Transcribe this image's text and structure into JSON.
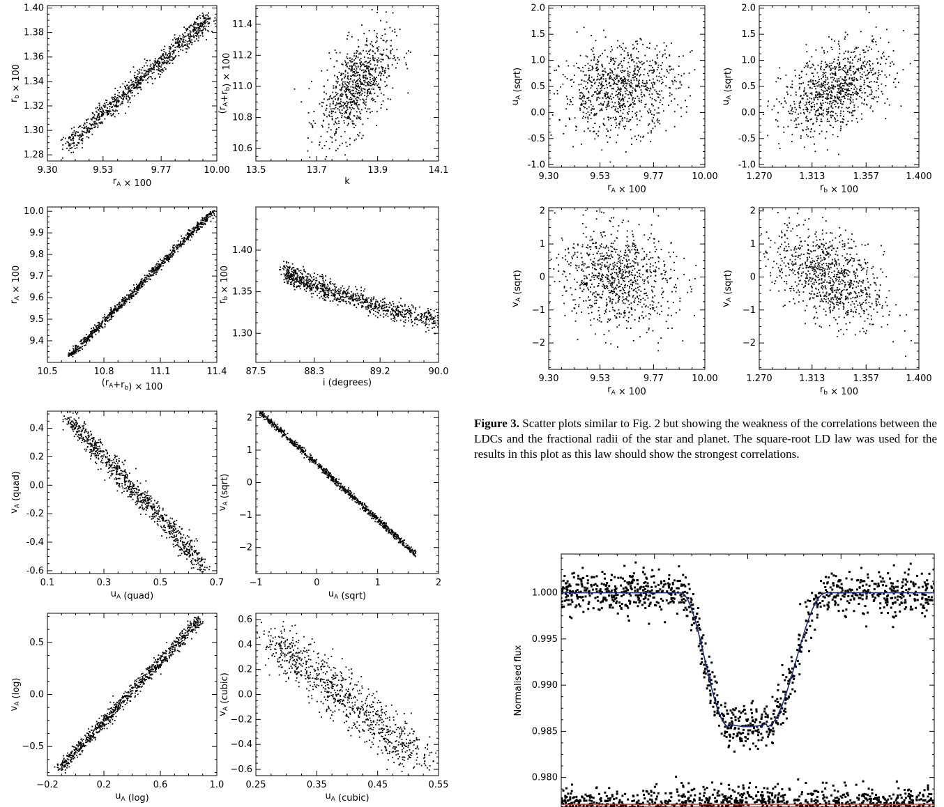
{
  "figure_caption": {
    "label": "Figure 3.",
    "text": "Scatter plots similar to Fig. 2 but showing the weakness of the correlations between the LDCs and the fractional radii of the star and planet. The square-root LD law was used for the results in this plot as this law should show the strongest correlations."
  },
  "chart_data": [
    {
      "id": "fig2-rb-vs-rA",
      "type": "scatter",
      "xlabel": "r_A × 100",
      "ylabel": "r_b × 100",
      "xlim": [
        9.3,
        10.0
      ],
      "ylim": [
        1.275,
        1.402
      ],
      "xticks": [
        9.3,
        9.53,
        9.77,
        10.0
      ],
      "xtick_labels": [
        "9.30",
        "9.53",
        "9.77",
        "10.00"
      ],
      "yticks": [
        1.28,
        1.3,
        1.32,
        1.34,
        1.36,
        1.38,
        1.4
      ],
      "ytick_labels": [
        "1.28",
        "1.30",
        "1.32",
        "1.34",
        "1.36",
        "1.38",
        "1.40"
      ],
      "cloud": {
        "kind": "linear",
        "x0": 9.38,
        "y0": 1.287,
        "x1": 9.97,
        "y1": 1.392,
        "spread_x": 0.015,
        "spread_y": 0.004,
        "n": 900
      }
    },
    {
      "id": "fig2-rsum-vs-k",
      "type": "scatter",
      "xlabel": "k",
      "ylabel": "(r_A+r_b) × 100",
      "xlim": [
        13.5,
        14.1
      ],
      "ylim": [
        10.52,
        11.52
      ],
      "xticks": [
        13.5,
        13.7,
        13.9,
        14.1
      ],
      "xtick_labels": [
        "13.5",
        "13.7",
        "13.9",
        "14.1"
      ],
      "yticks": [
        10.6,
        10.8,
        11.0,
        11.2,
        11.4
      ],
      "ytick_labels": [
        "10.6",
        "10.8",
        "11.0",
        "11.2",
        "11.4"
      ],
      "cloud": {
        "kind": "blob",
        "cx": 13.83,
        "cy": 11.0,
        "sx": 0.06,
        "sy": 0.17,
        "rho": 0.55,
        "n": 800
      }
    },
    {
      "id": "fig2-rA-vs-rsum",
      "type": "scatter",
      "xlabel": "(r_A+r_b) × 100",
      "ylabel": "r_A × 100",
      "xlim": [
        10.5,
        11.4
      ],
      "ylim": [
        9.3,
        10.02
      ],
      "xticks": [
        10.5,
        10.8,
        11.1,
        11.4
      ],
      "xtick_labels": [
        "10.5",
        "10.8",
        "11.1",
        "11.4"
      ],
      "yticks": [
        9.4,
        9.5,
        9.6,
        9.7,
        9.8,
        9.9,
        10.0
      ],
      "ytick_labels": [
        "9.4",
        "9.5",
        "9.6",
        "9.7",
        "9.8",
        "9.9",
        "10.0"
      ],
      "cloud": {
        "kind": "linear",
        "x0": 10.62,
        "y0": 9.33,
        "x1": 11.38,
        "y1": 10.0,
        "spread_x": 0.01,
        "spread_y": 0.006,
        "n": 900
      }
    },
    {
      "id": "fig2-rb-vs-i",
      "type": "scatter",
      "xlabel": "i (degrees)",
      "ylabel": "r_b × 100",
      "xlim": [
        87.5,
        90.0
      ],
      "ylim": [
        1.265,
        1.452
      ],
      "xticks": [
        87.5,
        88.3,
        89.2,
        90.0
      ],
      "xtick_labels": [
        "87.5",
        "88.3",
        "89.2",
        "90.0"
      ],
      "yticks": [
        1.3,
        1.35,
        1.4
      ],
      "ytick_labels": [
        "1.30",
        "1.35",
        "1.40"
      ],
      "cloud": {
        "kind": "curve",
        "poly": [
          1.3425,
          -0.0285,
          0.0048
        ],
        "x0": 87.9,
        "x1": 90.0,
        "xmid": 88.8,
        "spread_x": 0.03,
        "spread_y": 0.006,
        "n": 900
      }
    },
    {
      "id": "fig2-vA-vs-uA-quad",
      "type": "scatter",
      "xlabel": "u_A (quad)",
      "ylabel": "v_A (quad)",
      "xlim": [
        0.1,
        0.7
      ],
      "ylim": [
        -0.62,
        0.52
      ],
      "xticks": [
        0.1,
        0.3,
        0.5,
        0.7
      ],
      "xtick_labels": [
        "0.1",
        "0.3",
        "0.5",
        "0.7"
      ],
      "yticks": [
        -0.6,
        -0.4,
        -0.2,
        0.0,
        0.2,
        0.4
      ],
      "ytick_labels": [
        "-0.6",
        "-0.4",
        "-0.2",
        "0.0",
        "0.2",
        "0.4"
      ],
      "cloud": {
        "kind": "linear",
        "x0": 0.17,
        "y0": 0.48,
        "x1": 0.66,
        "y1": -0.58,
        "spread_x": 0.012,
        "spread_y": 0.04,
        "n": 900
      }
    },
    {
      "id": "fig2-vA-vs-uA-sqrt",
      "type": "scatter",
      "xlabel": "u_A (sqrt)",
      "ylabel": "v_A (sqrt)",
      "xlim": [
        -1,
        2
      ],
      "ylim": [
        -2.8,
        2.2
      ],
      "xticks": [
        -1,
        0,
        1,
        2
      ],
      "xtick_labels": [
        "−1",
        "0",
        "1",
        "2"
      ],
      "yticks": [
        -2,
        -1,
        0,
        1,
        2
      ],
      "ytick_labels": [
        "−2",
        "−1",
        "0",
        "1",
        "2"
      ],
      "cloud": {
        "kind": "linear",
        "x0": -0.92,
        "y0": 2.15,
        "x1": 1.62,
        "y1": -2.2,
        "spread_x": 0.02,
        "spread_y": 0.04,
        "n": 900
      }
    },
    {
      "id": "fig2-vA-vs-uA-log",
      "type": "scatter",
      "xlabel": "u_A (log)",
      "ylabel": "v_A (log)",
      "xlim": [
        -0.2,
        1.0
      ],
      "ylim": [
        -0.78,
        0.78
      ],
      "xticks": [
        -0.2,
        0.2,
        0.6,
        1.0
      ],
      "xtick_labels": [
        "−0.2",
        "0.2",
        "0.6",
        "1.0"
      ],
      "yticks": [
        -0.5,
        0.0,
        0.5
      ],
      "ytick_labels": [
        "−0.5",
        "0.0",
        "0.5"
      ],
      "cloud": {
        "kind": "linear",
        "x0": -0.12,
        "y0": -0.72,
        "x1": 0.88,
        "y1": 0.72,
        "spread_x": 0.015,
        "spread_y": 0.03,
        "n": 900
      }
    },
    {
      "id": "fig2-vA-vs-uA-cubic",
      "type": "scatter",
      "xlabel": "u_A (cubic)",
      "ylabel": "v_A (cubic)",
      "xlim": [
        0.25,
        0.55
      ],
      "ylim": [
        -0.65,
        0.65
      ],
      "xticks": [
        0.25,
        0.35,
        0.45,
        0.55
      ],
      "xtick_labels": [
        "0.25",
        "0.35",
        "0.45",
        "0.55"
      ],
      "yticks": [
        -0.6,
        -0.4,
        -0.2,
        0.0,
        0.2,
        0.4,
        0.6
      ],
      "ytick_labels": [
        "−0.6",
        "−0.4",
        "−0.2",
        "0.0",
        "0.2",
        "0.4",
        "0.6"
      ],
      "cloud": {
        "kind": "linear",
        "x0": 0.28,
        "y0": 0.42,
        "x1": 0.52,
        "y1": -0.52,
        "spread_x": 0.02,
        "spread_y": 0.08,
        "n": 900
      }
    },
    {
      "id": "fig3-uA-vs-rA",
      "type": "scatter",
      "xlabel": "r_A × 100",
      "ylabel": "u_A (sqrt)",
      "xlim": [
        9.3,
        10.0
      ],
      "ylim": [
        -1.05,
        2.05
      ],
      "xticks": [
        9.3,
        9.53,
        9.77,
        10.0
      ],
      "xtick_labels": [
        "9.30",
        "9.53",
        "9.77",
        "10.00"
      ],
      "yticks": [
        -1.0,
        -0.5,
        0.0,
        0.5,
        1.0,
        1.5,
        2.0
      ],
      "ytick_labels": [
        "-1.0",
        "-0.5",
        "0.0",
        "0.5",
        "1.0",
        "1.5",
        "2.0"
      ],
      "cloud": {
        "kind": "blob",
        "cx": 9.62,
        "cy": 0.45,
        "sx": 0.13,
        "sy": 0.42,
        "rho": 0.15,
        "n": 900
      }
    },
    {
      "id": "fig3-uA-vs-rb",
      "type": "scatter",
      "xlabel": "r_b × 100",
      "ylabel": "u_A (sqrt)",
      "xlim": [
        1.27,
        1.4
      ],
      "ylim": [
        -1.05,
        2.05
      ],
      "xticks": [
        1.27,
        1.313,
        1.357,
        1.4
      ],
      "xtick_labels": [
        "1.270",
        "1.313",
        "1.357",
        "1.400"
      ],
      "yticks": [
        -1.0,
        -0.5,
        0.0,
        0.5,
        1.0,
        1.5,
        2.0
      ],
      "ytick_labels": [
        "-1.0",
        "-0.5",
        "0.0",
        "0.5",
        "1.0",
        "1.5",
        "2.0"
      ],
      "cloud": {
        "kind": "blob",
        "cx": 1.333,
        "cy": 0.45,
        "sx": 0.022,
        "sy": 0.42,
        "rho": 0.45,
        "n": 900
      }
    },
    {
      "id": "fig3-vA-vs-rA",
      "type": "scatter",
      "xlabel": "r_A × 100",
      "ylabel": "v_A (sqrt)",
      "xlim": [
        9.3,
        10.0
      ],
      "ylim": [
        -2.8,
        2.1
      ],
      "xticks": [
        9.3,
        9.53,
        9.77,
        10.0
      ],
      "xtick_labels": [
        "9.30",
        "9.53",
        "9.77",
        "10.00"
      ],
      "yticks": [
        -2,
        -1,
        0,
        1,
        2
      ],
      "ytick_labels": [
        "−2",
        "−1",
        "0",
        "1",
        "2"
      ],
      "cloud": {
        "kind": "blob",
        "cx": 9.6,
        "cy": 0.0,
        "sx": 0.13,
        "sy": 0.75,
        "rho": -0.15,
        "n": 900
      }
    },
    {
      "id": "fig3-vA-vs-rb",
      "type": "scatter",
      "xlabel": "r_b × 100",
      "ylabel": "v_A (sqrt)",
      "xlim": [
        1.27,
        1.4
      ],
      "ylim": [
        -2.8,
        2.1
      ],
      "xticks": [
        1.27,
        1.313,
        1.357,
        1.4
      ],
      "xtick_labels": [
        "1.270",
        "1.313",
        "1.357",
        "1.400"
      ],
      "yticks": [
        -2,
        -1,
        0,
        1,
        2
      ],
      "ytick_labels": [
        "−2",
        "−1",
        "0",
        "1",
        "2"
      ],
      "cloud": {
        "kind": "blob",
        "cx": 1.327,
        "cy": 0.0,
        "sx": 0.022,
        "sy": 0.75,
        "rho": -0.45,
        "n": 900
      }
    },
    {
      "id": "fig4-lightcurve",
      "type": "scatter",
      "xlabel": "",
      "ylabel": "Normalised flux",
      "xlim": [
        0.0,
        1.0
      ],
      "ylim": [
        0.9768,
        1.0042
      ],
      "yticks": [
        0.98,
        0.985,
        0.99,
        0.995,
        1.0
      ],
      "ytick_labels": [
        "0.980",
        "0.985",
        "0.990",
        "0.995",
        "1.000"
      ],
      "model": {
        "color": "#1f2a7a",
        "baseline": 1.0,
        "depth": 0.0145,
        "t_ingress_start": 0.32,
        "t_ingress_end": 0.45,
        "t_egress_start": 0.55,
        "t_egress_end": 0.71
      },
      "residuals": {
        "color": "#e02020",
        "level": 0.9771,
        "scatter": 0.0009
      },
      "points_n": 1100,
      "point_scatter": 0.0012
    }
  ]
}
